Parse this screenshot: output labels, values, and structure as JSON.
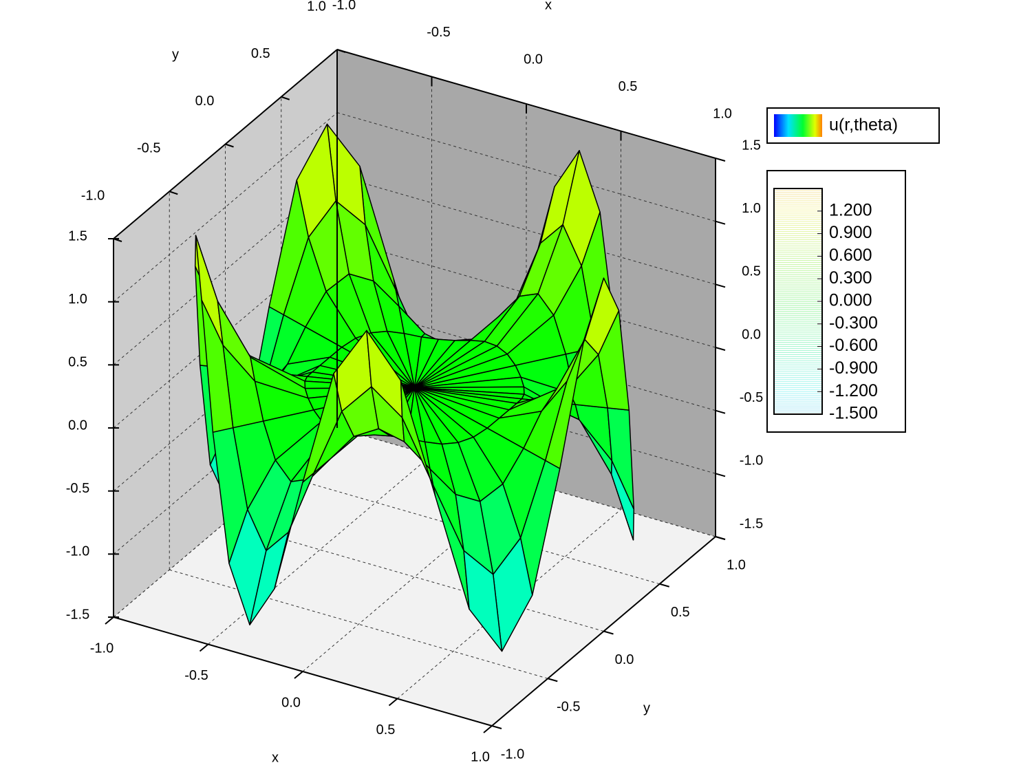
{
  "chart_data": {
    "type": "surface3d",
    "legend_label": "u(r,theta)",
    "xlabel": "x",
    "ylabel": "y",
    "xlim": [
      -1,
      1
    ],
    "ylim": [
      -1,
      1
    ],
    "zlim": [
      -1.5,
      1.5
    ],
    "xticks": [
      {
        "value": -1,
        "label": "-1.0"
      },
      {
        "value": -0.5,
        "label": "-0.5"
      },
      {
        "value": 0,
        "label": "0.0"
      },
      {
        "value": 0.5,
        "label": "0.5"
      },
      {
        "value": 1,
        "label": "1.0"
      }
    ],
    "yticks": [
      {
        "value": -1,
        "label": "-1.0"
      },
      {
        "value": -0.5,
        "label": "-0.5"
      },
      {
        "value": 0,
        "label": "0.0"
      },
      {
        "value": 0.5,
        "label": "0.5"
      },
      {
        "value": 1,
        "label": "1.0"
      }
    ],
    "zticks": [
      {
        "value": -1.5,
        "label": "-1.5"
      },
      {
        "value": -1,
        "label": "-1.0"
      },
      {
        "value": -0.5,
        "label": "-0.5"
      },
      {
        "value": 0,
        "label": "0.0"
      },
      {
        "value": 0.5,
        "label": "0.5"
      },
      {
        "value": 1,
        "label": "1.0"
      },
      {
        "value": 1.5,
        "label": "1.5"
      }
    ],
    "r": [
      0,
      0.5,
      0.75,
      0.9,
      1
    ],
    "theta": [
      0,
      9,
      18,
      27,
      36,
      45,
      54,
      63,
      72,
      81,
      90,
      99,
      108,
      117,
      126,
      135,
      144,
      153,
      162,
      171,
      180,
      189,
      198,
      207,
      216,
      225,
      234,
      243,
      252,
      261,
      270,
      279,
      288,
      297,
      306,
      315,
      324,
      333,
      342,
      351
    ],
    "z": [
      [
        0,
        0,
        0,
        0,
        0,
        0,
        0,
        0,
        0,
        0,
        0,
        0,
        0,
        0,
        0,
        0,
        0,
        0,
        0,
        0,
        0,
        0,
        0,
        0,
        0,
        0,
        0,
        0,
        0,
        0,
        0,
        0,
        0,
        0,
        0,
        0,
        0,
        0,
        0,
        0
      ],
      [
        0.04,
        0.03,
        0,
        -0.03,
        -0.04,
        -0.03,
        0,
        0.03,
        0.04,
        0.03,
        0,
        -0.03,
        -0.04,
        -0.03,
        0,
        0.03,
        0.04,
        0.03,
        0,
        -0.03,
        -0.04,
        -0.03,
        0,
        0.03,
        0.04,
        0.03,
        0,
        -0.03,
        -0.04,
        -0.03,
        0,
        0.03,
        0.04,
        0.03,
        0,
        -0.03,
        -0.04,
        -0.03,
        0,
        0.03
      ],
      [
        0.31,
        0.22,
        0,
        -0.22,
        -0.31,
        -0.22,
        0,
        0.22,
        0.31,
        0.22,
        0,
        -0.22,
        -0.31,
        -0.22,
        0,
        0.22,
        0.31,
        0.22,
        0,
        -0.22,
        -0.31,
        -0.22,
        0,
        0.22,
        0.31,
        0.22,
        0,
        -0.22,
        -0.31,
        -0.22,
        0,
        0.22,
        0.31,
        0.22,
        0,
        -0.22,
        -0.31,
        -0.22,
        0,
        0.22
      ],
      [
        0.77,
        0.54,
        0,
        -0.54,
        -0.77,
        -0.54,
        0,
        0.54,
        0.77,
        0.54,
        0,
        -0.54,
        -0.77,
        -0.54,
        0,
        0.54,
        0.77,
        0.54,
        0,
        -0.54,
        -0.77,
        -0.54,
        0,
        0.54,
        0.77,
        0.54,
        0,
        -0.54,
        -0.77,
        -0.54,
        0,
        0.54,
        0.77,
        0.54,
        0,
        -0.54,
        -0.77,
        -0.54,
        0,
        0.54
      ],
      [
        1.3,
        0.92,
        0,
        -0.92,
        -1.3,
        -0.92,
        0,
        0.92,
        1.3,
        0.92,
        0,
        -0.92,
        -1.3,
        -0.92,
        0,
        0.92,
        1.3,
        0.92,
        0,
        -0.92,
        -1.3,
        -0.92,
        0,
        0.92,
        1.3,
        0.92,
        0,
        -0.92,
        -1.3,
        -0.92,
        0,
        0.92,
        1.3,
        0.92,
        0,
        -0.92,
        -1.3,
        -0.92,
        0,
        0.92
      ]
    ],
    "colorbar_lim": [
      -1.5,
      1.5
    ],
    "colorbar_ticks": [
      {
        "value": -1.5,
        "label": "-1.500"
      },
      {
        "value": -1.2,
        "label": "-1.200"
      },
      {
        "value": -0.9,
        "label": "-0.900"
      },
      {
        "value": -0.6,
        "label": "-0.600"
      },
      {
        "value": -0.3,
        "label": "-0.300"
      },
      {
        "value": 0,
        "label": "0.000"
      },
      {
        "value": 0.3,
        "label": "0.300"
      },
      {
        "value": 0.6,
        "label": "0.600"
      },
      {
        "value": 0.9,
        "label": "0.900"
      },
      {
        "value": 1.2,
        "label": "1.200"
      }
    ],
    "grid": true
  }
}
